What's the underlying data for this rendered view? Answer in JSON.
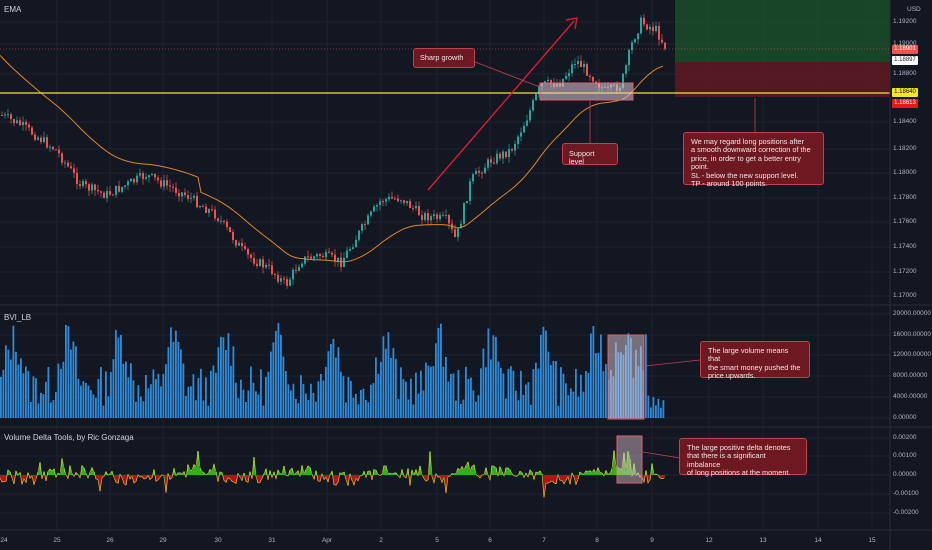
{
  "header": {
    "indicator_label": "EMA",
    "currency": "USD"
  },
  "panes": {
    "volume_label": "BVI_LB",
    "delta_label": "Volume Delta Tools, by Ric Gonzaga"
  },
  "price_axis": [
    "1.19200",
    "1.19000",
    "1.18800",
    "1.18400",
    "1.18200",
    "1.18000",
    "1.17800",
    "1.17600",
    "1.17400",
    "1.17200",
    "1.17000"
  ],
  "price_tags": {
    "current": "1.18901",
    "previous": "1.18897",
    "support": "1.18640",
    "ema": "1.18613"
  },
  "colors": {
    "background": "#131722",
    "bull": "#26a69a",
    "bear": "#ef5350",
    "support_line": "#f5e52a",
    "ema": "#e0862a",
    "arrow": "#d81e2e",
    "volume_bar": "#2f8bd8",
    "delta_green": "#35d916",
    "delta_red": "#e01010"
  },
  "volume_axis": [
    "20000.00000",
    "16000.00000",
    "12000.00000",
    "8000.00000",
    "4000.00000",
    "0.00000"
  ],
  "delta_axis": [
    "0.00200",
    "0.00100",
    "0.00000",
    "-0.00100",
    "-0.00200"
  ],
  "time_axis": [
    "24",
    "25",
    "26",
    "29",
    "30",
    "31",
    "Apr",
    "2",
    "5",
    "6",
    "7",
    "8",
    "9",
    "12",
    "13",
    "14",
    "15"
  ],
  "annotations": {
    "sharp_growth": "Sharp growth",
    "support_level": "Support level",
    "trade_plan": [
      "We may regard long positions after",
      "a smooth downward correction of the",
      "price, in order to get a better entry point.",
      "SL - below the new support level.",
      "TP - around 100 points."
    ],
    "volume_note": [
      "The large volume means that",
      "the smart money pushed the",
      "price upwards."
    ],
    "delta_note": [
      "The large positive delta denotes",
      "that there is a significant imbalance",
      "of long positions at the moment."
    ]
  }
}
